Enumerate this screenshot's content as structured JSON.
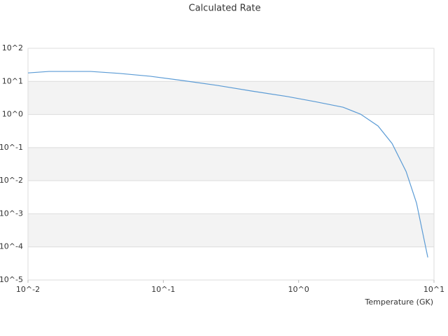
{
  "chart_data": {
    "type": "line",
    "title": "Calculated Rate",
    "x_label": "Temperature (GK)",
    "xscale": "log",
    "yscale": "log",
    "grid": true,
    "xlim": [
      0.01,
      10
    ],
    "ylim": [
      1e-05,
      100
    ],
    "xticks": [
      {
        "value": 0.01,
        "label": "10^-2"
      },
      {
        "value": 0.1,
        "label": "10^-1"
      },
      {
        "value": 1,
        "label": "10^0"
      },
      {
        "value": 10,
        "label": "10^1"
      }
    ],
    "yticks": [
      {
        "value": 1e-05,
        "label": "10^-5"
      },
      {
        "value": 0.0001,
        "label": "10^-4"
      },
      {
        "value": 0.001,
        "label": "10^-3"
      },
      {
        "value": 0.01,
        "label": "10^-2"
      },
      {
        "value": 0.1,
        "label": "10^-1"
      },
      {
        "value": 1,
        "label": "10^0"
      },
      {
        "value": 10,
        "label": "10^1"
      },
      {
        "value": 100,
        "label": "10^2"
      }
    ],
    "x": [
      0.01,
      0.0143,
      0.029,
      0.047,
      0.08,
      0.137,
      0.249,
      0.452,
      0.82,
      1.32,
      2.13,
      2.87,
      3.86,
      4.9,
      6.22,
      7.43,
      9.0
    ],
    "series": [
      {
        "color": "#5b9bd5",
        "values": [
          18,
          20,
          20,
          17.5,
          14.3,
          10.7,
          7.6,
          5.1,
          3.5,
          2.45,
          1.66,
          1.02,
          0.45,
          0.133,
          0.019,
          0.0021,
          4.8e-05
        ]
      }
    ]
  }
}
